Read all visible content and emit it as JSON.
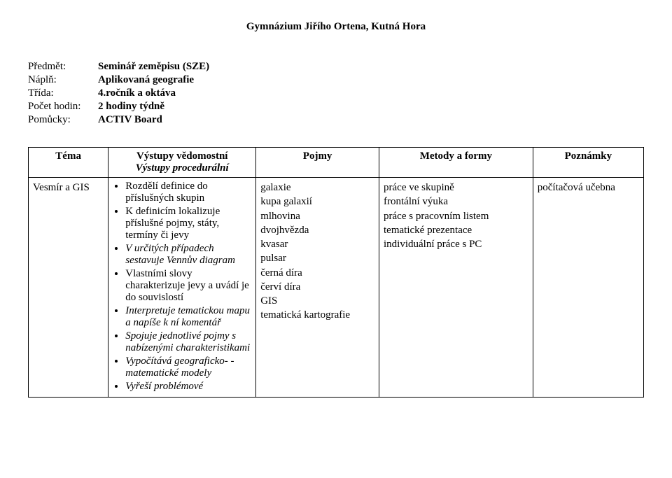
{
  "header": {
    "title": "Gymnázium Jiřího Ortena, Kutná Hora"
  },
  "meta": {
    "rows": [
      {
        "label": "Předmět:",
        "value": "Seminář zeměpisu (SZE)"
      },
      {
        "label": "Náplň:",
        "value": "Aplikovaná geografie"
      },
      {
        "label": "Třída:",
        "value": "4.ročník a oktáva"
      },
      {
        "label": "Počet hodin:",
        "value": "2 hodiny týdně"
      },
      {
        "label": "Pomůcky:",
        "value": "ACTIV Board"
      }
    ]
  },
  "table": {
    "headers": {
      "tema": "Téma",
      "vystupy_top": "Výstupy vědomostní",
      "vystupy_bottom": "Výstupy procedurální",
      "pojmy": "Pojmy",
      "metody": "Metody a formy",
      "poznamky": "Poznámky"
    },
    "row": {
      "tema": "Vesmír a GIS",
      "vystupy": [
        {
          "text": "Rozdělí definice do příslušných skupin",
          "italic": false
        },
        {
          "text": "K definicím lokalizuje příslušné pojmy, státy, termíny či jevy",
          "italic": false
        },
        {
          "text": "V určitých případech sestavuje Vennův diagram",
          "italic": true
        },
        {
          "text": "Vlastními slovy charakterizuje jevy a uvádí je do souvislostí",
          "italic": false
        },
        {
          "text": "Interpretuje tematickou mapu a napíše k ní komentář",
          "italic": true
        },
        {
          "text": "Spojuje jednotlivé pojmy s nabízenými charakteristikami",
          "italic": true
        },
        {
          "text": "Vypočítává geograficko- - matematické modely",
          "italic": true
        },
        {
          "text": "Vyřeší problémové",
          "italic": true
        }
      ],
      "pojmy": [
        "galaxie",
        "kupa galaxií",
        "mlhovina",
        "dvojhvězda",
        "kvasar",
        "pulsar",
        "černá díra",
        "červí díra",
        "GIS",
        "tematická kartografie"
      ],
      "metody": [
        "práce ve skupině",
        "frontální výuka",
        "práce s pracovním listem",
        "tematické prezentace",
        "individuální práce s PC"
      ],
      "poznamky": "počítačová učebna"
    }
  }
}
